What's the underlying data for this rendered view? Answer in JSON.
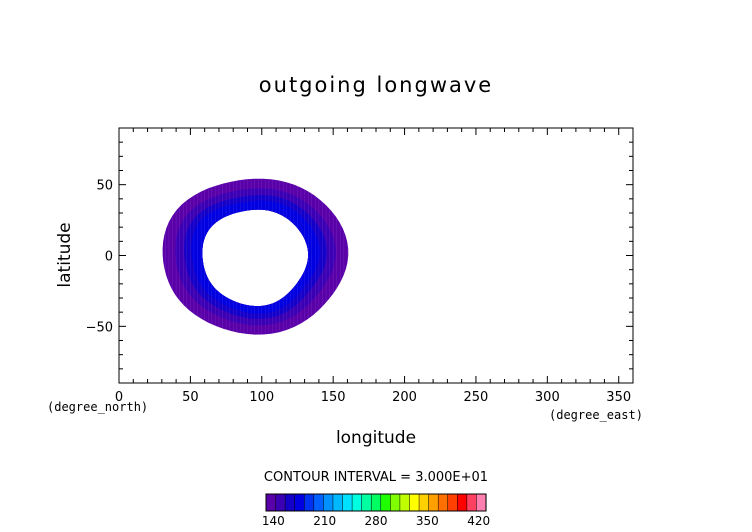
{
  "chart_data": {
    "type": "heatmap",
    "title": "outgoing longwave",
    "xlabel": "longitude",
    "ylabel": "latitude",
    "x_unit": "(degree_east)",
    "y_unit": "(degree_north)",
    "xlim": [
      0,
      360
    ],
    "ylim": [
      -90,
      90
    ],
    "x_ticks": [
      0,
      50,
      100,
      150,
      200,
      250,
      300,
      350
    ],
    "y_ticks": [
      -50,
      0,
      50
    ],
    "contour_interval_label": "CONTOUR INTERVAL = 3.000E+01",
    "colorbar": {
      "range": [
        130,
        430
      ],
      "tick_labels": [
        140,
        210,
        280,
        350,
        420
      ],
      "colors": [
        "#5a00a8",
        "#3c00b4",
        "#1400c8",
        "#0000e0",
        "#0030f0",
        "#0060ff",
        "#0090ff",
        "#00b8ff",
        "#00e0ff",
        "#00ffe0",
        "#00ffa0",
        "#00ff60",
        "#20ff00",
        "#80ff00",
        "#c0ff00",
        "#ffff00",
        "#ffd000",
        "#ffa000",
        "#ff7000",
        "#ff4000",
        "#ff0000",
        "#ff4060",
        "#ff80b0"
      ]
    },
    "field_region": {
      "center_lon": 95,
      "center_lat": 0,
      "outer_lon_radius": 65,
      "outer_lat_radius": 55,
      "inner_lon_radius": 37,
      "inner_lat_radius": 34,
      "values_range": [
        140,
        200
      ]
    }
  }
}
